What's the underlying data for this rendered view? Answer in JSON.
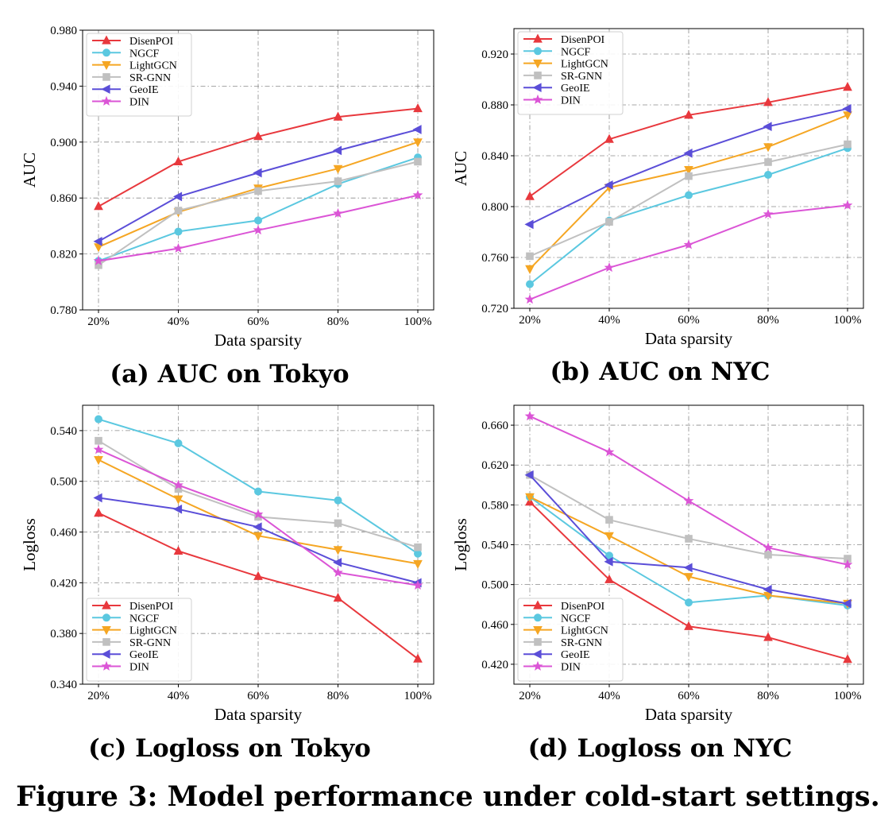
{
  "chart_data": [
    {
      "type": "line",
      "categories": [
        "20%",
        "40%",
        "60%",
        "80%",
        "100%"
      ],
      "xlabel": "Data sparsity",
      "ylabel": "AUC",
      "ylim": [
        0.78,
        0.98
      ],
      "yticks": [
        "0.780",
        "0.820",
        "0.860",
        "0.900",
        "0.940",
        "0.980"
      ],
      "grid": true,
      "legend_position": "top-left",
      "caption": "(a) AUC on Tokyo",
      "series": [
        {
          "name": "DisenPOI",
          "color": "#e8383d",
          "marker": "triangle-up",
          "values": [
            0.854,
            0.886,
            0.904,
            0.918,
            0.924
          ]
        },
        {
          "name": "NGCF",
          "color": "#5bc8e0",
          "marker": "circle",
          "values": [
            0.815,
            0.836,
            0.844,
            0.87,
            0.889
          ]
        },
        {
          "name": "LightGCN",
          "color": "#f5a623",
          "marker": "triangle-down",
          "values": [
            0.825,
            0.85,
            0.867,
            0.881,
            0.9
          ]
        },
        {
          "name": "SR-GNN",
          "color": "#c0c0c0",
          "marker": "square",
          "values": [
            0.812,
            0.851,
            0.865,
            0.872,
            0.886
          ]
        },
        {
          "name": "GeoIE",
          "color": "#5b4ed8",
          "marker": "triangle-left",
          "values": [
            0.829,
            0.861,
            0.878,
            0.894,
            0.909
          ]
        },
        {
          "name": "DIN",
          "color": "#db55d6",
          "marker": "star",
          "values": [
            0.815,
            0.824,
            0.837,
            0.849,
            0.862
          ]
        }
      ]
    },
    {
      "type": "line",
      "categories": [
        "20%",
        "40%",
        "60%",
        "80%",
        "100%"
      ],
      "xlabel": "Data sparsity",
      "ylabel": "AUC",
      "ylim": [
        0.72,
        0.94
      ],
      "yticks": [
        "0.720",
        "0.760",
        "0.800",
        "0.840",
        "0.880",
        "0.920"
      ],
      "grid": true,
      "legend_position": "top-left",
      "caption": "(b) AUC on NYC",
      "series": [
        {
          "name": "DisenPOI",
          "color": "#e8383d",
          "marker": "triangle-up",
          "values": [
            0.808,
            0.853,
            0.872,
            0.882,
            0.894
          ]
        },
        {
          "name": "NGCF",
          "color": "#5bc8e0",
          "marker": "circle",
          "values": [
            0.739,
            0.789,
            0.809,
            0.825,
            0.846
          ]
        },
        {
          "name": "LightGCN",
          "color": "#f5a623",
          "marker": "triangle-down",
          "values": [
            0.751,
            0.815,
            0.829,
            0.847,
            0.872
          ]
        },
        {
          "name": "SR-GNN",
          "color": "#c0c0c0",
          "marker": "square",
          "values": [
            0.761,
            0.788,
            0.824,
            0.835,
            0.849
          ]
        },
        {
          "name": "GeoIE",
          "color": "#5b4ed8",
          "marker": "triangle-left",
          "values": [
            0.786,
            0.817,
            0.842,
            0.863,
            0.877
          ]
        },
        {
          "name": "DIN",
          "color": "#db55d6",
          "marker": "star",
          "values": [
            0.727,
            0.752,
            0.77,
            0.794,
            0.801
          ]
        }
      ]
    },
    {
      "type": "line",
      "categories": [
        "20%",
        "40%",
        "60%",
        "80%",
        "100%"
      ],
      "xlabel": "Data sparsity",
      "ylabel": "Logloss",
      "ylim": [
        0.34,
        0.56
      ],
      "yticks": [
        "0.340",
        "0.380",
        "0.420",
        "0.460",
        "0.500",
        "0.540"
      ],
      "grid": true,
      "legend_position": "bottom-left",
      "caption": "(c) Logloss on Tokyo",
      "series": [
        {
          "name": "DisenPOI",
          "color": "#e8383d",
          "marker": "triangle-up",
          "values": [
            0.475,
            0.445,
            0.425,
            0.408,
            0.36
          ]
        },
        {
          "name": "NGCF",
          "color": "#5bc8e0",
          "marker": "circle",
          "values": [
            0.549,
            0.53,
            0.492,
            0.485,
            0.443
          ]
        },
        {
          "name": "LightGCN",
          "color": "#f5a623",
          "marker": "triangle-down",
          "values": [
            0.517,
            0.486,
            0.457,
            0.446,
            0.435
          ]
        },
        {
          "name": "SR-GNN",
          "color": "#c0c0c0",
          "marker": "square",
          "values": [
            0.532,
            0.494,
            0.472,
            0.467,
            0.448
          ]
        },
        {
          "name": "GeoIE",
          "color": "#5b4ed8",
          "marker": "triangle-left",
          "values": [
            0.487,
            0.478,
            0.464,
            0.436,
            0.42
          ]
        },
        {
          "name": "DIN",
          "color": "#db55d6",
          "marker": "star",
          "values": [
            0.525,
            0.497,
            0.474,
            0.428,
            0.418
          ]
        }
      ]
    },
    {
      "type": "line",
      "categories": [
        "20%",
        "40%",
        "60%",
        "80%",
        "100%"
      ],
      "xlabel": "Data sparsity",
      "ylabel": "Logloss",
      "ylim": [
        0.4,
        0.68
      ],
      "yticks": [
        "0.420",
        "0.460",
        "0.500",
        "0.540",
        "0.580",
        "0.620",
        "0.660"
      ],
      "grid": true,
      "legend_position": "bottom-left",
      "caption": "(d) Logloss on NYC",
      "series": [
        {
          "name": "DisenPOI",
          "color": "#e8383d",
          "marker": "triangle-up",
          "values": [
            0.583,
            0.505,
            0.458,
            0.447,
            0.425
          ]
        },
        {
          "name": "NGCF",
          "color": "#5bc8e0",
          "marker": "circle",
          "values": [
            0.588,
            0.529,
            0.482,
            0.489,
            0.479
          ]
        },
        {
          "name": "LightGCN",
          "color": "#f5a623",
          "marker": "triangle-down",
          "values": [
            0.588,
            0.549,
            0.508,
            0.489,
            0.481
          ]
        },
        {
          "name": "SR-GNN",
          "color": "#c0c0c0",
          "marker": "square",
          "values": [
            0.61,
            0.565,
            0.546,
            0.53,
            0.526
          ]
        },
        {
          "name": "GeoIE",
          "color": "#5b4ed8",
          "marker": "triangle-left",
          "values": [
            0.61,
            0.523,
            0.517,
            0.495,
            0.481
          ]
        },
        {
          "name": "DIN",
          "color": "#db55d6",
          "marker": "star",
          "values": [
            0.669,
            0.633,
            0.584,
            0.537,
            0.52
          ]
        }
      ]
    }
  ],
  "figure_caption": "Figure 3: Model performance under cold-start settings."
}
